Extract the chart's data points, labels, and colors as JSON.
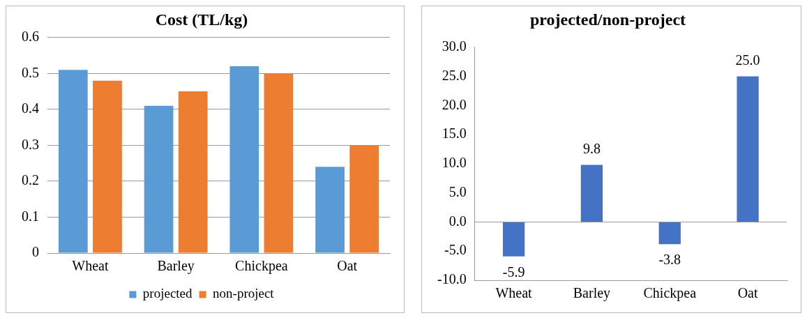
{
  "chart_data": [
    {
      "type": "bar",
      "title": "Cost (TL/kg)",
      "categories": [
        "Wheat",
        "Barley",
        "Chickpea",
        "Oat"
      ],
      "series": [
        {
          "name": "projected",
          "color": "#5b9bd5",
          "values": [
            0.51,
            0.41,
            0.52,
            0.24
          ]
        },
        {
          "name": "non-project",
          "color": "#ed7d31",
          "values": [
            0.48,
            0.45,
            0.5,
            0.3
          ]
        }
      ],
      "ylim": [
        0,
        0.6
      ],
      "yticks": [
        0,
        0.1,
        0.2,
        0.3,
        0.4,
        0.5,
        0.6
      ],
      "grid": "y",
      "legend": "bottom"
    },
    {
      "type": "bar",
      "title": "projected/non-project",
      "categories": [
        "Wheat",
        "Barley",
        "Chickpea",
        "Oat"
      ],
      "values": [
        -5.9,
        9.8,
        -3.8,
        25.0
      ],
      "color": "#4472c4",
      "value_labels": [
        "-5.9",
        "9.8",
        "-3.8",
        "25.0"
      ],
      "ylim": [
        -10,
        30
      ],
      "yticks": [
        {
          "value": -10,
          "label": "-10.0"
        },
        {
          "value": -5,
          "label": "-5.0"
        },
        {
          "value": 0,
          "label": "0.0"
        },
        {
          "value": 5,
          "label": "5.0"
        },
        {
          "value": 10,
          "label": "10.0"
        },
        {
          "value": 15,
          "label": "15.0"
        },
        {
          "value": 20,
          "label": "20.0"
        },
        {
          "value": 25,
          "label": "25.0"
        },
        {
          "value": 30,
          "label": "30.0"
        }
      ]
    }
  ]
}
